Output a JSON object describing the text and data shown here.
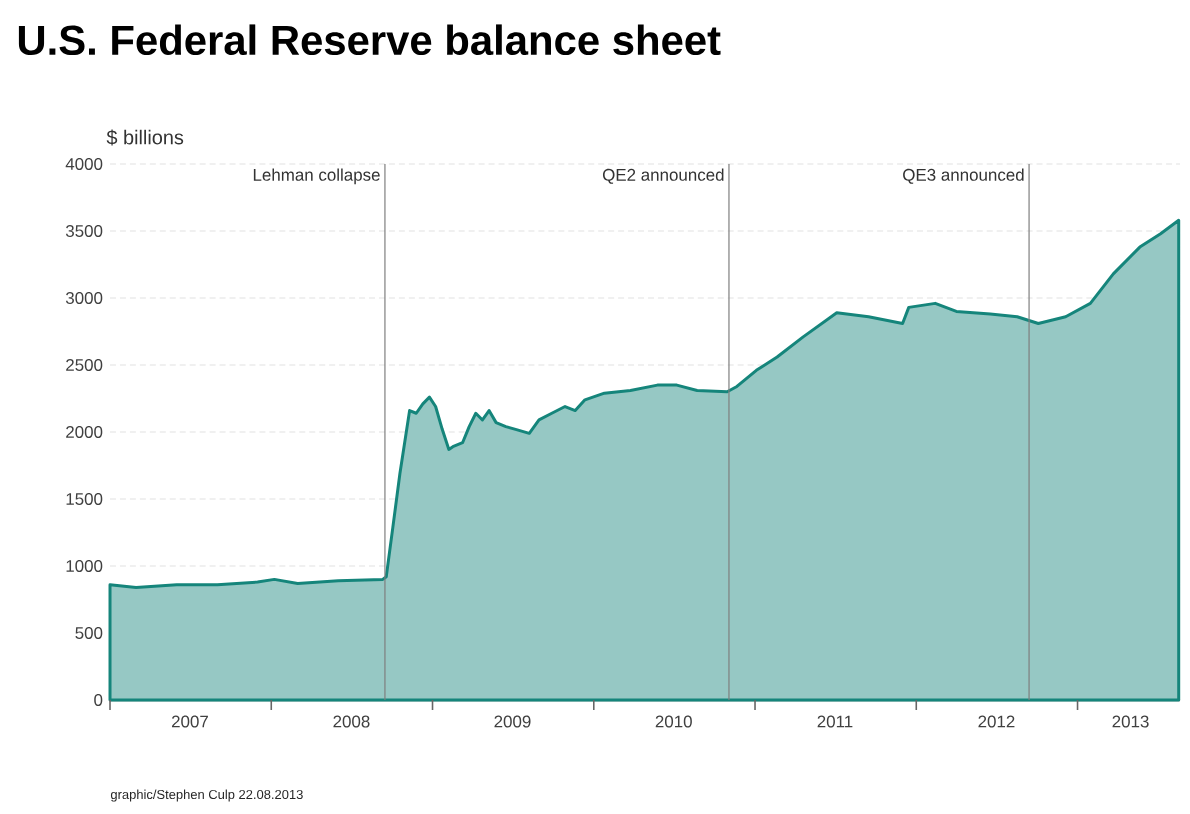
{
  "chart_data": {
    "type": "area",
    "title": "U.S. Federal Reserve balance sheet",
    "ylabel": "$ billions",
    "x": [
      "2007-01-01",
      "2007-03-01",
      "2007-06-01",
      "2007-09-01",
      "2007-12-01",
      "2008-01-08",
      "2008-03-01",
      "2008-06-01",
      "2008-09-10",
      "2008-09-18",
      "2008-10-03",
      "2008-10-19",
      "2008-11-10",
      "2008-11-25",
      "2008-12-10",
      "2008-12-25",
      "2009-01-08",
      "2009-01-23",
      "2009-02-07",
      "2009-02-16",
      "2009-03-10",
      "2009-03-25",
      "2009-04-09",
      "2009-04-24",
      "2009-05-09",
      "2009-05-25",
      "2009-06-16",
      "2009-07-08",
      "2009-08-08",
      "2009-08-30",
      "2009-09-28",
      "2009-10-28",
      "2009-11-20",
      "2009-12-12",
      "2010-01-25",
      "2010-03-25",
      "2010-05-25",
      "2010-07-08",
      "2010-08-23",
      "2010-10-30",
      "2010-11-21",
      "2011-01-04",
      "2011-02-20",
      "2011-04-20",
      "2011-07-05",
      "2011-09-15",
      "2011-12-01",
      "2011-12-15",
      "2012-02-13",
      "2012-04-01",
      "2012-06-17",
      "2012-08-17",
      "2012-10-04",
      "2012-12-05",
      "2013-01-30",
      "2013-03-23",
      "2013-05-22",
      "2013-07-08",
      "2013-08-18"
    ],
    "series": [
      {
        "color": "#15857b",
        "values": [
          860,
          840,
          860,
          860,
          880,
          900,
          870,
          890,
          900,
          920,
          1290,
          1690,
          2160,
          2140,
          2210,
          2260,
          2190,
          2020,
          1870,
          1890,
          1920,
          2040,
          2140,
          2090,
          2160,
          2070,
          2040,
          2020,
          1990,
          2090,
          2140,
          2190,
          2160,
          2240,
          2290,
          2310,
          2350,
          2350,
          2310,
          2300,
          2340,
          2460,
          2560,
          2710,
          2890,
          2860,
          2810,
          2930,
          2960,
          2900,
          2880,
          2860,
          2810,
          2860,
          2960,
          3180,
          3380,
          3480,
          3580
        ]
      }
    ],
    "xlim": [
      "2007-01-01",
      "2013-08-21"
    ],
    "xticks": [
      {
        "value": "2007-01-01",
        "label": null
      },
      {
        "value": "2007-07-01",
        "label": "2007"
      },
      {
        "value": "2008-01-01",
        "label": null
      },
      {
        "value": "2008-07-01",
        "label": "2008"
      },
      {
        "value": "2009-01-01",
        "label": null
      },
      {
        "value": "2009-07-01",
        "label": "2009"
      },
      {
        "value": "2010-01-01",
        "label": null
      },
      {
        "value": "2010-07-01",
        "label": "2010"
      },
      {
        "value": "2011-01-01",
        "label": null
      },
      {
        "value": "2011-07-01",
        "label": "2011"
      },
      {
        "value": "2012-01-01",
        "label": null
      },
      {
        "value": "2012-07-01",
        "label": "2012"
      },
      {
        "value": "2013-01-01",
        "label": null
      },
      {
        "value": "2013-05-01",
        "label": "2013"
      }
    ],
    "ylim": [
      0,
      4000
    ],
    "yticks": [
      0,
      500,
      1000,
      1500,
      2000,
      2500,
      3000,
      3500,
      4000
    ],
    "grid": "y",
    "ref_lines": [
      {
        "axis": "x",
        "value": "2008-09-15",
        "label": "Lehman collapse",
        "color": "#7f7f7f"
      },
      {
        "axis": "x",
        "value": "2010-11-03",
        "label": "QE2 announced",
        "color": "#7f7f7f"
      },
      {
        "axis": "x",
        "value": "2012-09-13",
        "label": "QE3 announced",
        "color": "#7f7f7f"
      }
    ],
    "annotations": [
      "graphic/Stephen Culp 22.08.2013"
    ]
  }
}
